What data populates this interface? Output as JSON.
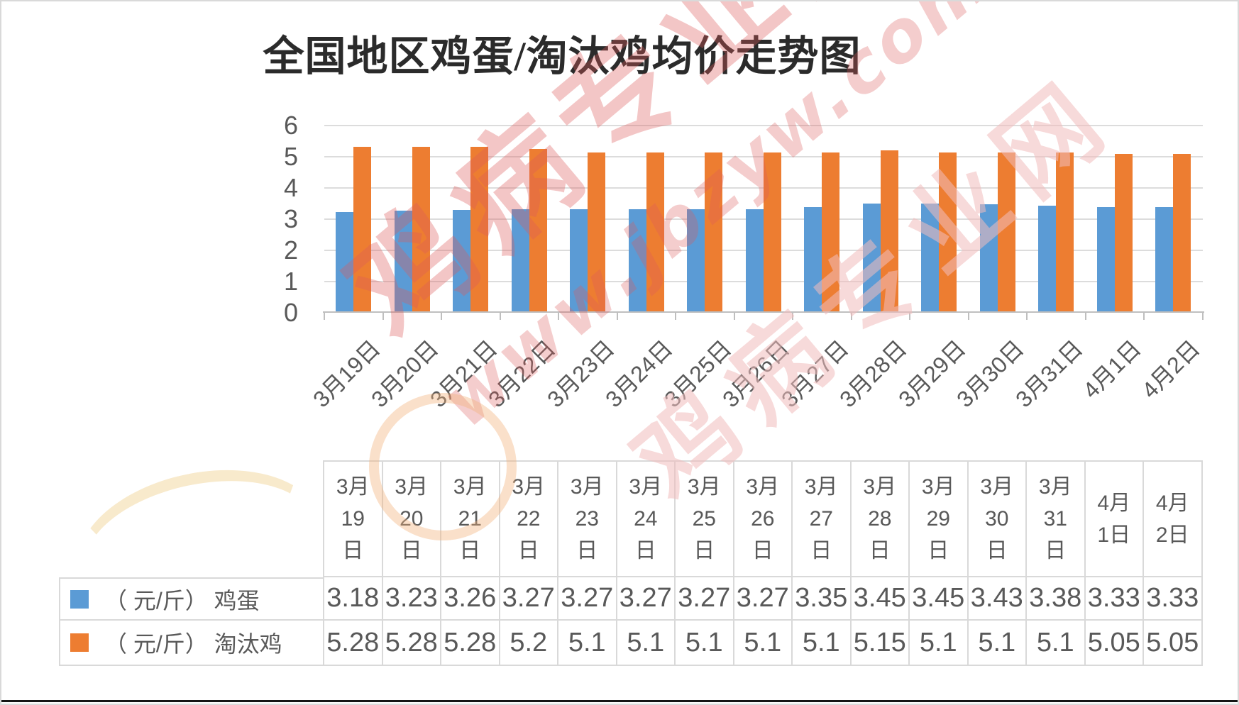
{
  "title": "全国地区鸡蛋/淘汰鸡均价走势图",
  "watermark": {
    "brand": "鸡病专业网",
    "url": "www.jbzyw.com",
    "brand_faint": "鸡病专业网",
    "color": "#dd5c5c"
  },
  "chart_data": {
    "type": "bar",
    "title": "全国地区鸡蛋/淘汰鸡均价走势图",
    "categories": [
      "3月19日",
      "3月20日",
      "3月21日",
      "3月22日",
      "3月23日",
      "3月24日",
      "3月25日",
      "3月26日",
      "3月27日",
      "3月28日",
      "3月29日",
      "3月30日",
      "3月31日",
      "4月1日",
      "4月2日"
    ],
    "series": [
      {
        "name": "（ 元/斤） 鸡蛋",
        "color": "#5B9BD5",
        "values": [
          3.18,
          3.23,
          3.26,
          3.27,
          3.27,
          3.27,
          3.27,
          3.27,
          3.35,
          3.45,
          3.45,
          3.43,
          3.38,
          3.33,
          3.33
        ]
      },
      {
        "name": "（ 元/斤） 淘汰鸡",
        "color": "#ED7D31",
        "values": [
          5.28,
          5.28,
          5.28,
          5.2,
          5.1,
          5.1,
          5.1,
          5.1,
          5.1,
          5.15,
          5.1,
          5.1,
          5.1,
          5.05,
          5.05
        ]
      }
    ],
    "ylim": [
      0,
      6
    ],
    "yticks": [
      0,
      1,
      2,
      3,
      4,
      5,
      6
    ],
    "grid": true,
    "legend_position": "table-left",
    "x_label_rotation": -45,
    "unit": "元/斤"
  },
  "table": {
    "header_lines": [
      "3月\n19\n日",
      "3月\n20\n日",
      "3月\n21\n日",
      "3月\n22\n日",
      "3月\n23\n日",
      "3月\n24\n日",
      "3月\n25\n日",
      "3月\n26\n日",
      "3月\n27\n日",
      "3月\n28\n日",
      "3月\n29\n日",
      "3月\n30\n日",
      "3月\n31\n日",
      "4月\n1日",
      "4月\n2日"
    ]
  }
}
